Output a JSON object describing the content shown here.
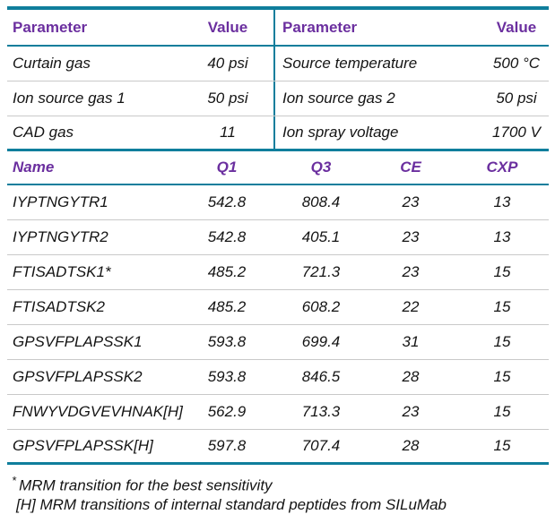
{
  "colors": {
    "accent": "#0F7E9C",
    "header_text": "#6B2F9F",
    "row_line": "#C9C9C9",
    "body_text": "#141414"
  },
  "source_params": {
    "headers": [
      "Parameter",
      "Value",
      "Parameter",
      "Value"
    ],
    "rows": [
      [
        "Curtain gas",
        "40 psi",
        "Source temperature",
        "500 °C"
      ],
      [
        "Ion source gas 1",
        "50 psi",
        "Ion source gas 2",
        "50 psi"
      ],
      [
        "CAD gas",
        "11",
        "Ion spray voltage",
        "1700 V"
      ]
    ]
  },
  "transitions": {
    "headers": [
      "Name",
      "Q1",
      "Q3",
      "CE",
      "CXP"
    ],
    "rows": [
      [
        "IYPTNGYTR1",
        "542.8",
        "808.4",
        "23",
        "13"
      ],
      [
        "IYPTNGYTR2",
        "542.8",
        "405.1",
        "23",
        "13"
      ],
      [
        "FTISADTSK1*",
        "485.2",
        "721.3",
        "23",
        "15"
      ],
      [
        "FTISADTSK2",
        "485.2",
        "608.2",
        "22",
        "15"
      ],
      [
        "GPSVFPLAPSSK1",
        "593.8",
        "699.4",
        "31",
        "15"
      ],
      [
        "GPSVFPLAPSSK2",
        "593.8",
        "846.5",
        "28",
        "15"
      ],
      [
        "FNWYVDGVEVHNAK[H]",
        "562.9",
        "713.3",
        "23",
        "15"
      ],
      [
        "GPSVFPLAPSSK[H]",
        "597.8",
        "707.4",
        "28",
        "15"
      ]
    ]
  },
  "footnotes": {
    "star_marker": "*",
    "star_text": "MRM transition for the best sensitivity",
    "h_note": "[H] MRM transitions of internal standard peptides from SILuMab"
  }
}
